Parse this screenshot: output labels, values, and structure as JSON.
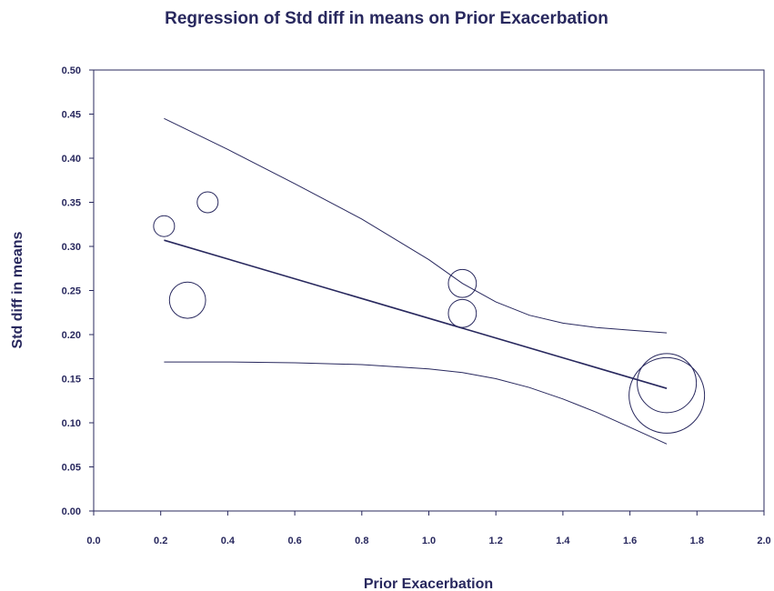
{
  "chart_data": {
    "type": "scatter",
    "title": "Regression of Std diff in means on Prior Exacerbation",
    "xlabel": "Prior Exacerbation",
    "ylabel": "Std diff in means",
    "xlim": [
      0.0,
      2.0
    ],
    "ylim": [
      0.0,
      0.5
    ],
    "xticks": [
      "0.0",
      "0.2",
      "0.4",
      "0.6",
      "0.8",
      "1.0",
      "1.2",
      "1.4",
      "1.6",
      "1.8",
      "2.0"
    ],
    "yticks": [
      "0.00",
      "0.05",
      "0.10",
      "0.15",
      "0.20",
      "0.25",
      "0.30",
      "0.35",
      "0.40",
      "0.45",
      "0.50"
    ],
    "grid": false,
    "color": "#28285e",
    "points": [
      {
        "x": 0.21,
        "y": 0.323,
        "weight": 1.0
      },
      {
        "x": 0.34,
        "y": 0.35,
        "weight": 1.0
      },
      {
        "x": 0.28,
        "y": 0.239,
        "weight": 3.0
      },
      {
        "x": 1.1,
        "y": 0.258,
        "weight": 1.8
      },
      {
        "x": 1.1,
        "y": 0.224,
        "weight": 1.8
      },
      {
        "x": 1.71,
        "y": 0.145,
        "weight": 8.0
      },
      {
        "x": 1.71,
        "y": 0.131,
        "weight": 13.0
      }
    ],
    "regression_line": [
      {
        "x": 0.21,
        "y": 0.307
      },
      {
        "x": 1.71,
        "y": 0.139
      }
    ],
    "upper_ci": [
      {
        "x": 0.21,
        "y": 0.445
      },
      {
        "x": 0.4,
        "y": 0.41
      },
      {
        "x": 0.6,
        "y": 0.371
      },
      {
        "x": 0.8,
        "y": 0.331
      },
      {
        "x": 1.0,
        "y": 0.285
      },
      {
        "x": 1.1,
        "y": 0.258
      },
      {
        "x": 1.2,
        "y": 0.237
      },
      {
        "x": 1.3,
        "y": 0.222
      },
      {
        "x": 1.4,
        "y": 0.213
      },
      {
        "x": 1.5,
        "y": 0.208
      },
      {
        "x": 1.6,
        "y": 0.205
      },
      {
        "x": 1.71,
        "y": 0.202
      }
    ],
    "lower_ci": [
      {
        "x": 0.21,
        "y": 0.169
      },
      {
        "x": 0.4,
        "y": 0.169
      },
      {
        "x": 0.6,
        "y": 0.168
      },
      {
        "x": 0.8,
        "y": 0.166
      },
      {
        "x": 1.0,
        "y": 0.161
      },
      {
        "x": 1.1,
        "y": 0.157
      },
      {
        "x": 1.2,
        "y": 0.15
      },
      {
        "x": 1.3,
        "y": 0.14
      },
      {
        "x": 1.4,
        "y": 0.127
      },
      {
        "x": 1.5,
        "y": 0.112
      },
      {
        "x": 1.6,
        "y": 0.095
      },
      {
        "x": 1.71,
        "y": 0.076
      }
    ]
  }
}
